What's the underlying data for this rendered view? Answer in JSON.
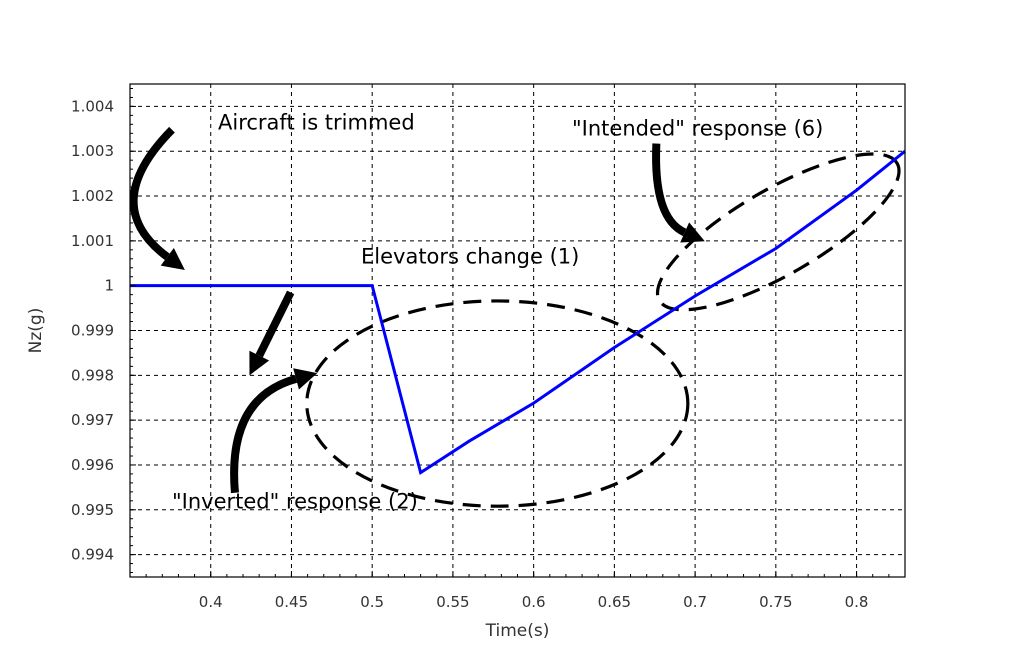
{
  "colors": {
    "series": "#0000ff",
    "grid": "#000000",
    "annotation": "#000000"
  },
  "chart_data": {
    "type": "line",
    "title": "",
    "xlabel": "Time(s)",
    "ylabel": "Nz(g)",
    "xlim": [
      0.35,
      0.83
    ],
    "ylim": [
      0.9935,
      1.0045
    ],
    "grid": true,
    "legend": "none",
    "xticks": [
      0.4,
      0.45,
      0.5,
      0.55,
      0.6,
      0.65,
      0.7,
      0.75,
      0.8
    ],
    "xtick_labels": [
      "0.4",
      "0.45",
      "0.5",
      "0.55",
      "0.6",
      "0.65",
      "0.7",
      "0.75",
      "0.8"
    ],
    "yticks": [
      0.994,
      0.995,
      0.996,
      0.997,
      0.998,
      0.999,
      1.0,
      1.001,
      1.002,
      1.003,
      1.004
    ],
    "ytick_labels": [
      "0.994",
      "0.995",
      "0.996",
      "0.997",
      "0.998",
      "0.999",
      "1",
      "1.001",
      "1.002",
      "1.003",
      "1.004"
    ],
    "series": [
      {
        "x": [
          0.35,
          0.4,
          0.45,
          0.5,
          0.53,
          0.56,
          0.6,
          0.65,
          0.7,
          0.75,
          0.8,
          0.83
        ],
        "y": [
          1.0,
          1.0,
          1.0,
          1.0,
          0.99583,
          0.99653,
          0.99738,
          0.99862,
          0.99977,
          1.00083,
          1.00213,
          1.003
        ]
      }
    ],
    "annotations": [
      {
        "text": "Aircraft is trimmed",
        "x": 0.354,
        "y": 1.00349
      },
      {
        "text": "Elevators change (1)",
        "x": 0.4,
        "y": 1.00049
      },
      {
        "text": "\"Intended\" response (6)",
        "x": 0.606,
        "y": 1.00335
      },
      {
        "text": "\"Inverted\" response (2)",
        "x": 0.363,
        "y": 0.99503
      }
    ],
    "ellipses": [
      {
        "cx": 0.5775,
        "cy": 0.99737,
        "rx": 0.118,
        "ry": 0.00229,
        "angle": 0
      },
      {
        "cx": 0.7515,
        "cy": 1.0012,
        "rx": 0.085,
        "ry": 0.00095,
        "angle": -30
      }
    ],
    "arrows": [
      {
        "from": [
          0.376,
          1.00348
        ],
        "ctrl": [
          0.33,
          1.0018
        ],
        "to": [
          0.384,
          1.00035
        ]
      },
      {
        "from": [
          0.4495,
          0.99985
        ],
        "ctrl": [
          0.4495,
          0.99985
        ],
        "to": [
          0.424,
          0.998
        ]
      },
      {
        "from": [
          0.415,
          0.99538
        ],
        "ctrl": [
          0.41,
          0.9975
        ],
        "to": [
          0.466,
          0.99805
        ]
      },
      {
        "from": [
          0.676,
          1.00317
        ],
        "ctrl": [
          0.674,
          1.0015
        ],
        "to": [
          0.706,
          1.00099
        ]
      }
    ]
  }
}
